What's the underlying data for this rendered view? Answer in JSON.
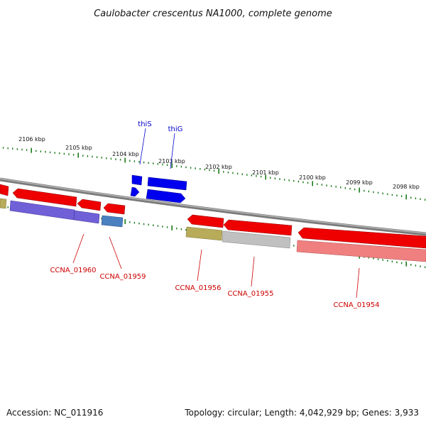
{
  "title": "Caulobacter crescentus NA1000, complete genome",
  "footer": {
    "accession": "Accession: NC_011916",
    "summary": "Topology: circular; Length: 4,042,929 bp; Genes: 3,933"
  },
  "colors": {
    "backbone": "#888888",
    "tick": "#1a7a1a",
    "tick_label": "#111111",
    "label_red": "#cc0000",
    "label_blue": "#0000cc",
    "gene_red": "#ee0000",
    "gene_blue": "#0000ee"
  },
  "kbp_ticks": [
    "2106 kbp",
    "2105 kbp",
    "2104 kbp",
    "2103 kbp",
    "2102 kbp",
    "2101 kbp",
    "2100 kbp",
    "2099 kbp",
    "2098 kbp"
  ],
  "gene_labels_outer": [
    {
      "name": "thiS",
      "color": "blue"
    },
    {
      "name": "thiG",
      "color": "blue"
    }
  ],
  "gene_labels_inner": [
    {
      "name": "CCNA_01960",
      "color": "red"
    },
    {
      "name": "CCNA_01959",
      "color": "red"
    },
    {
      "name": "CCNA_01956",
      "color": "red"
    },
    {
      "name": "CCNA_01955",
      "color": "red"
    },
    {
      "name": "CCNA_01954",
      "color": "red"
    }
  ]
}
